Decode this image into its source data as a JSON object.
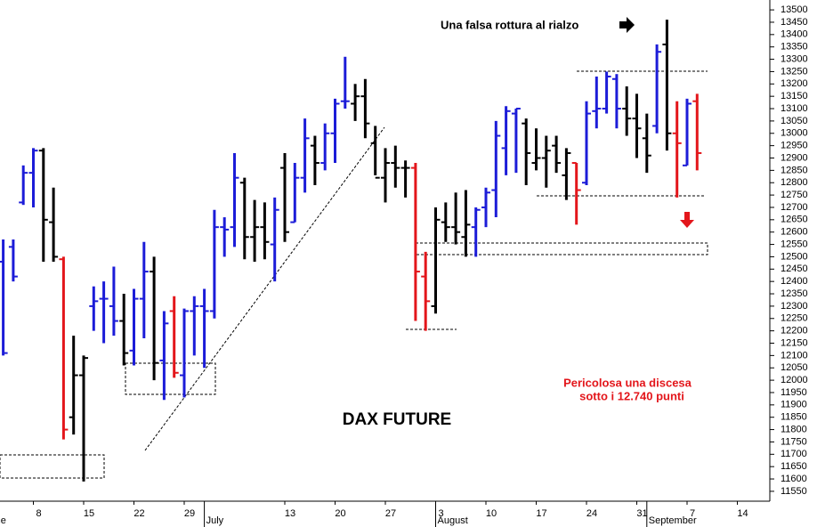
{
  "chart_data": {
    "type": "ohlc",
    "title": "DAX FUTURE",
    "annotations": [
      "Una falsa rottura al rialzo",
      "Pericolosa una discesa",
      "sotto i 12.740 punti"
    ],
    "categories": [
      null,
      null,
      null,
      null,
      null,
      "8",
      null,
      null,
      null,
      null,
      "15",
      null,
      null,
      null,
      null,
      "22",
      null,
      null,
      null,
      null,
      "29",
      null,
      null,
      null,
      null,
      null,
      null,
      null,
      null,
      null,
      "13",
      null,
      null,
      null,
      null,
      "20",
      null,
      null,
      null,
      null,
      "27",
      null,
      null,
      null,
      null,
      "3",
      null,
      null,
      null,
      null,
      "10",
      null,
      null,
      null,
      null,
      "17",
      null,
      null,
      null,
      null,
      "24",
      null,
      null,
      null,
      null,
      "31",
      null,
      null,
      null,
      null,
      "7",
      null,
      null,
      null,
      null,
      "14"
    ],
    "month_labels": [
      "June",
      null,
      null,
      null,
      null,
      null,
      null,
      null,
      null,
      null,
      null,
      null,
      null,
      null,
      null,
      null,
      null,
      null,
      null,
      null,
      null,
      null,
      "July",
      null,
      null,
      null,
      null,
      null,
      null,
      null,
      null,
      null,
      null,
      null,
      null,
      null,
      null,
      null,
      null,
      null,
      null,
      null,
      null,
      null,
      null,
      "August",
      null,
      null,
      null,
      null,
      null,
      null,
      null,
      null,
      null,
      null,
      null,
      null,
      null,
      null,
      null,
      null,
      null,
      null,
      null,
      null,
      "September",
      null,
      null,
      null,
      null,
      null,
      null,
      null,
      null,
      null
    ],
    "open": [
      null,
      null,
      12480,
      12540,
      12720,
      12840,
      12930,
      12640,
      12490,
      11850,
      12020,
      12300,
      12330,
      12300,
      12240,
      12120,
      12330,
      12440,
      12080,
      12280,
      12020,
      12280,
      12300,
      12280,
      12620,
      12620,
      12800,
      12580,
      12620,
      12550,
      12860,
      12640,
      12820,
      12950,
      12880,
      13000,
      13130,
      13120,
      13150,
      12960,
      12820,
      12880,
      12860,
      12860,
      12420,
      12300,
      12640,
      12620,
      12580,
      12620,
      12700,
      12770,
      12940,
      13080,
      13040,
      12880,
      12900,
      12950,
      12830,
      12880,
      12800,
      13090,
      13100,
      13220,
      13100,
      13060,
      12980,
      13030,
      13360,
      13000,
      12870,
      13130,
      null,
      null,
      null,
      null
    ],
    "high": [
      null,
      null,
      12570,
      12570,
      12870,
      12940,
      12940,
      12780,
      12500,
      12180,
      12100,
      12380,
      12400,
      12460,
      12350,
      12370,
      12560,
      12500,
      12280,
      12340,
      12290,
      12340,
      12370,
      12690,
      12660,
      12920,
      12820,
      12730,
      12720,
      12740,
      12920,
      12880,
      13060,
      12990,
      13040,
      13140,
      13310,
      13200,
      13220,
      13030,
      12940,
      12950,
      12890,
      12880,
      12520,
      12700,
      12720,
      12760,
      12770,
      12700,
      12780,
      13050,
      13110,
      13100,
      13060,
      13020,
      12990,
      12990,
      12940,
      12880,
      13130,
      13230,
      13250,
      13240,
      13190,
      13160,
      13080,
      13360,
      13460,
      13130,
      13140,
      13160,
      null,
      null,
      null,
      null
    ],
    "low": [
      null,
      null,
      12100,
      12400,
      12710,
      12700,
      12480,
      12480,
      11760,
      11780,
      11590,
      12200,
      12150,
      12180,
      12060,
      12060,
      12170,
      12000,
      11920,
      12010,
      11930,
      12100,
      12050,
      12250,
      12500,
      12540,
      12490,
      12480,
      12490,
      12400,
      12560,
      12640,
      12760,
      12790,
      12850,
      12880,
      13100,
      13050,
      12980,
      12830,
      12720,
      12780,
      12740,
      12240,
      12200,
      12270,
      12560,
      12550,
      12500,
      12500,
      12620,
      12660,
      12830,
      12840,
      12790,
      12850,
      12780,
      12840,
      12730,
      12630,
      12790,
      13020,
      13080,
      13020,
      12990,
      12900,
      12840,
      13000,
      12930,
      12740,
      12870,
      12850,
      null,
      null,
      null,
      null
    ],
    "close": [
      null,
      null,
      12110,
      12420,
      12840,
      12930,
      12650,
      12500,
      11800,
      12020,
      12090,
      12320,
      12330,
      12240,
      12110,
      12330,
      12440,
      12070,
      12230,
      12030,
      12280,
      12300,
      12280,
      12620,
      12610,
      12820,
      12580,
      12620,
      12560,
      12690,
      12600,
      12820,
      12980,
      12880,
      13000,
      13120,
      13130,
      13150,
      13040,
      12820,
      12880,
      12860,
      12860,
      12440,
      12320,
      12650,
      12620,
      12600,
      12630,
      12690,
      12760,
      12990,
      13090,
      13100,
      12920,
      12900,
      12930,
      12880,
      12920,
      12770,
      13080,
      13100,
      13230,
      13100,
      13060,
      13020,
      12910,
      13330,
      13000,
      12960,
      13120,
      12920,
      null,
      null,
      null,
      null
    ],
    "colors": [
      null,
      null,
      "#1c1cd8",
      "#1c1cd8",
      "#1c1cd8",
      "#1c1cd8",
      "#000000",
      "#000000",
      "#e3161b",
      "#000000",
      "#000000",
      "#1c1cd8",
      "#1c1cd8",
      "#1c1cd8",
      "#000000",
      "#1c1cd8",
      "#1c1cd8",
      "#000000",
      "#1c1cd8",
      "#e3161b",
      "#1c1cd8",
      "#1c1cd8",
      "#1c1cd8",
      "#1c1cd8",
      "#1c1cd8",
      "#1c1cd8",
      "#000000",
      "#000000",
      "#000000",
      "#1c1cd8",
      "#000000",
      "#1c1cd8",
      "#1c1cd8",
      "#000000",
      "#1c1cd8",
      "#1c1cd8",
      "#1c1cd8",
      "#000000",
      "#000000",
      "#000000",
      "#000000",
      "#000000",
      "#000000",
      "#e3161b",
      "#e3161b",
      "#000000",
      "#000000",
      "#000000",
      "#000000",
      "#1c1cd8",
      "#1c1cd8",
      "#1c1cd8",
      "#1c1cd8",
      "#1c1cd8",
      "#000000",
      "#000000",
      "#000000",
      "#000000",
      "#000000",
      "#e3161b",
      "#1c1cd8",
      "#1c1cd8",
      "#1c1cd8",
      "#1c1cd8",
      "#000000",
      "#000000",
      "#000000",
      "#1c1cd8",
      "#000000",
      "#e3161b",
      "#1c1cd8",
      "#e3161b",
      null,
      null,
      null,
      null
    ],
    "ylim": [
      11510,
      13540
    ],
    "yticks": [
      11550,
      11600,
      11650,
      11700,
      11750,
      11800,
      11850,
      11900,
      11950,
      12000,
      12050,
      12100,
      12150,
      12200,
      12250,
      12300,
      12350,
      12400,
      12450,
      12500,
      12550,
      12600,
      12650,
      12700,
      12750,
      12800,
      12850,
      12900,
      12950,
      13000,
      13050,
      13100,
      13150,
      13200,
      13250,
      13300,
      13350,
      13400,
      13450,
      13500
    ]
  }
}
